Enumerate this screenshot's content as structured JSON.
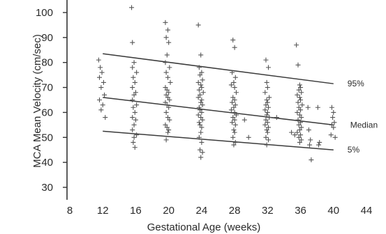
{
  "chart_data": {
    "type": "scatter",
    "xlabel": "Gestational Age (weeks)",
    "ylabel": "MCA Mean Velocity (cm/sec)",
    "xlim": [
      8,
      44
    ],
    "ylim": [
      25,
      102
    ],
    "xticks": [
      8,
      12,
      16,
      20,
      24,
      28,
      32,
      36,
      40,
      44
    ],
    "yticks": [
      30,
      40,
      50,
      60,
      70,
      80,
      90,
      100
    ],
    "grid": false,
    "colors": {
      "axis": "#333333",
      "points": "#555555",
      "lines": "#3a3a3a"
    },
    "curves": [
      {
        "name": "95%",
        "x": [
          12,
          40
        ],
        "y": [
          83.5,
          71.5
        ]
      },
      {
        "name": "Median",
        "x": [
          12,
          40
        ],
        "y": [
          66,
          55
        ]
      },
      {
        "name": "5%",
        "x": [
          12,
          40
        ],
        "y": [
          52.5,
          45
        ]
      }
    ],
    "points": [
      [
        11.5,
        81
      ],
      [
        11.7,
        78
      ],
      [
        11.9,
        76
      ],
      [
        11.6,
        74
      ],
      [
        12.1,
        72
      ],
      [
        11.8,
        70
      ],
      [
        12.2,
        67
      ],
      [
        11.6,
        65
      ],
      [
        12,
        63
      ],
      [
        11.8,
        61
      ],
      [
        12.3,
        58
      ],
      [
        15.5,
        102
      ],
      [
        15.6,
        88
      ],
      [
        15.8,
        80
      ],
      [
        15.6,
        78
      ],
      [
        16.1,
        76
      ],
      [
        15.7,
        74
      ],
      [
        15.9,
        72
      ],
      [
        15.6,
        70
      ],
      [
        16,
        68
      ],
      [
        15.8,
        67
      ],
      [
        15.6,
        65
      ],
      [
        16.1,
        63
      ],
      [
        15.7,
        62
      ],
      [
        15.9,
        60
      ],
      [
        15.6,
        58
      ],
      [
        16,
        57
      ],
      [
        15.8,
        55
      ],
      [
        15.6,
        53
      ],
      [
        16.1,
        51
      ],
      [
        15.8,
        50
      ],
      [
        15.7,
        48
      ],
      [
        15.9,
        46
      ],
      [
        19.6,
        96
      ],
      [
        19.9,
        93
      ],
      [
        19.7,
        90
      ],
      [
        20,
        88
      ],
      [
        19.8,
        83
      ],
      [
        19.6,
        80
      ],
      [
        20.1,
        78
      ],
      [
        19.7,
        76
      ],
      [
        19.9,
        74
      ],
      [
        20.2,
        72
      ],
      [
        19.6,
        70
      ],
      [
        19.8,
        69
      ],
      [
        20,
        68
      ],
      [
        19.7,
        67
      ],
      [
        19.9,
        66
      ],
      [
        20.1,
        65
      ],
      [
        19.6,
        64
      ],
      [
        19.8,
        63
      ],
      [
        20,
        62
      ],
      [
        19.7,
        60
      ],
      [
        19.9,
        58
      ],
      [
        20.1,
        57
      ],
      [
        19.6,
        55
      ],
      [
        19.8,
        54
      ],
      [
        20,
        53
      ],
      [
        19.9,
        52
      ],
      [
        19.7,
        49
      ],
      [
        23.6,
        95
      ],
      [
        23.9,
        83
      ],
      [
        23.7,
        78
      ],
      [
        24,
        76
      ],
      [
        23.8,
        75
      ],
      [
        24.1,
        73
      ],
      [
        23.6,
        72
      ],
      [
        23.9,
        71
      ],
      [
        24,
        70
      ],
      [
        23.7,
        69
      ],
      [
        24.2,
        68
      ],
      [
        23.8,
        67
      ],
      [
        23.6,
        66
      ],
      [
        24,
        65
      ],
      [
        23.9,
        64
      ],
      [
        24.1,
        63
      ],
      [
        23.7,
        62
      ],
      [
        23.8,
        61
      ],
      [
        24,
        60
      ],
      [
        23.6,
        59
      ],
      [
        23.9,
        58
      ],
      [
        24.1,
        57
      ],
      [
        23.7,
        56
      ],
      [
        23.8,
        55
      ],
      [
        24,
        54
      ],
      [
        23.9,
        52
      ],
      [
        23.7,
        50
      ],
      [
        24,
        48
      ],
      [
        23.8,
        45
      ],
      [
        24.1,
        44
      ],
      [
        23.9,
        42
      ],
      [
        27.8,
        89
      ],
      [
        28,
        86
      ],
      [
        27.7,
        76
      ],
      [
        28.1,
        74
      ],
      [
        27.9,
        72
      ],
      [
        27.6,
        71
      ],
      [
        28,
        70
      ],
      [
        28.2,
        68
      ],
      [
        27.8,
        66
      ],
      [
        28,
        65
      ],
      [
        27.7,
        64
      ],
      [
        28.1,
        63
      ],
      [
        27.9,
        62
      ],
      [
        27.6,
        61
      ],
      [
        28,
        60
      ],
      [
        28.2,
        59
      ],
      [
        27.8,
        58
      ],
      [
        28,
        57
      ],
      [
        27.7,
        56
      ],
      [
        28.1,
        55
      ],
      [
        27.9,
        53
      ],
      [
        28,
        52
      ],
      [
        27.8,
        50
      ],
      [
        28.1,
        48
      ],
      [
        27.9,
        47
      ],
      [
        29.2,
        57
      ],
      [
        29.7,
        50
      ],
      [
        31.8,
        81
      ],
      [
        32.1,
        78
      ],
      [
        31.9,
        72
      ],
      [
        32,
        70
      ],
      [
        31.7,
        68
      ],
      [
        32.2,
        66
      ],
      [
        31.9,
        65
      ],
      [
        32,
        64
      ],
      [
        31.8,
        63
      ],
      [
        32.1,
        62
      ],
      [
        31.7,
        61
      ],
      [
        32,
        60
      ],
      [
        31.9,
        59
      ],
      [
        32.2,
        58
      ],
      [
        31.8,
        57
      ],
      [
        32,
        56
      ],
      [
        31.7,
        55
      ],
      [
        32.1,
        54
      ],
      [
        31.9,
        53
      ],
      [
        32,
        52
      ],
      [
        31.8,
        50
      ],
      [
        32.1,
        49
      ],
      [
        31.9,
        47
      ],
      [
        33.1,
        58
      ],
      [
        35.5,
        87
      ],
      [
        35.7,
        79
      ],
      [
        35.9,
        71
      ],
      [
        36,
        70
      ],
      [
        35.8,
        69
      ],
      [
        36.1,
        68
      ],
      [
        35.6,
        67
      ],
      [
        35.9,
        66
      ],
      [
        36,
        65
      ],
      [
        35.7,
        64
      ],
      [
        36.2,
        63
      ],
      [
        35.8,
        62
      ],
      [
        36,
        61
      ],
      [
        35.6,
        60
      ],
      [
        35.9,
        59
      ],
      [
        36.1,
        58
      ],
      [
        35.7,
        57
      ],
      [
        36,
        56
      ],
      [
        35.8,
        55
      ],
      [
        36.1,
        54
      ],
      [
        35.9,
        53
      ],
      [
        35.6,
        52
      ],
      [
        36,
        51
      ],
      [
        35.8,
        50
      ],
      [
        36.1,
        49
      ],
      [
        35.9,
        48
      ],
      [
        34.9,
        52
      ],
      [
        35.3,
        51
      ],
      [
        36.9,
        62
      ],
      [
        37,
        53
      ],
      [
        37.2,
        49
      ],
      [
        37.1,
        47
      ],
      [
        37.3,
        41
      ],
      [
        38.1,
        62
      ],
      [
        38.3,
        48
      ],
      [
        38.2,
        47
      ],
      [
        39.8,
        62
      ],
      [
        40,
        60
      ],
      [
        39.9,
        58
      ],
      [
        40.1,
        56
      ],
      [
        39.8,
        55
      ],
      [
        40,
        54
      ],
      [
        40.2,
        50
      ],
      [
        39.7,
        51
      ]
    ]
  }
}
